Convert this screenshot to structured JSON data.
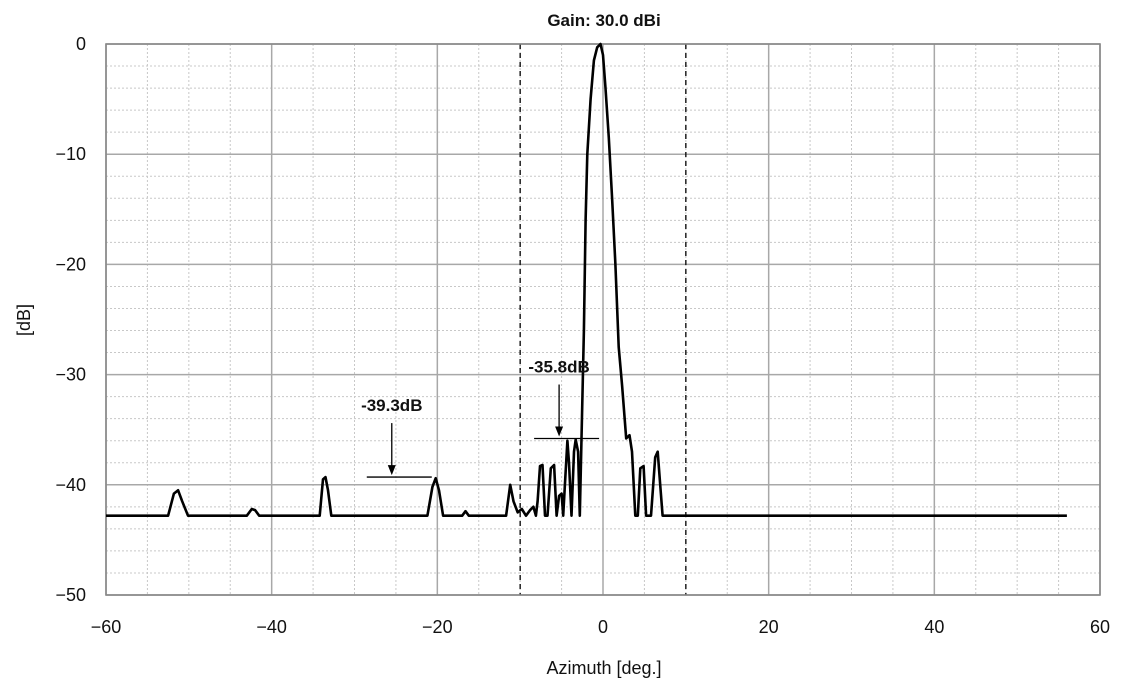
{
  "chart_data": {
    "type": "line",
    "title": "Gain: 30.0 dBi",
    "xlabel": "Azimuth [deg.]",
    "ylabel": "[dB]",
    "xlim": [
      -60,
      60
    ],
    "ylim": [
      -50,
      0
    ],
    "x_ticks": [
      "-60",
      "-40",
      "-20",
      "0",
      "20",
      "40",
      "60"
    ],
    "y_ticks": [
      "0",
      "-10",
      "-20",
      "-30",
      "-40",
      "-50"
    ],
    "grid": true,
    "legend": "none",
    "reference_lines": [
      {
        "x": -10,
        "style": "dashed"
      },
      {
        "x": 10,
        "style": "dashed"
      }
    ],
    "annotations": [
      {
        "text": "-39.3dB",
        "x": -25.5,
        "level": -39.3
      },
      {
        "text": "-35.8dB",
        "x": -5.3,
        "level": -35.8
      }
    ],
    "series": [
      {
        "x": [
          -60,
          -52.5,
          -51.8,
          -51.3,
          -50.8,
          -50.1,
          -43,
          -42.4,
          -42,
          -41.5,
          -34.2,
          -33.8,
          -33.5,
          -33.2,
          -32.8,
          -21.2,
          -20.6,
          -20.2,
          -19.8,
          -19.3,
          -17,
          -16.6,
          -16.2,
          -11.7,
          -11.2,
          -10.8,
          -10.3,
          -9.8,
          -9.3,
          -8.8,
          -8.4,
          -8.1,
          -7.9,
          -7.6,
          -7.3,
          -7.0,
          -6.7,
          -6.3,
          -5.9,
          -5.6,
          -5.3,
          -5.0,
          -4.8,
          -4.6,
          -4.3,
          -4.1,
          -3.8,
          -3.5,
          -3.3,
          -3.0,
          -2.8,
          -2.6,
          -2.3,
          -2.1,
          -1.9,
          -1.5,
          -1.1,
          -0.7,
          -0.3,
          0,
          0.3,
          0.7,
          1.1,
          1.5,
          1.9,
          2.3,
          2.8,
          3.2,
          3.5,
          3.9,
          4.2,
          4.5,
          4.9,
          5.2,
          5.5,
          5.8,
          6.3,
          6.6,
          6.9,
          7.2,
          7.5,
          7.8,
          8.2,
          56
        ],
        "y": [
          -42.8,
          -42.8,
          -40.8,
          -40.5,
          -41.5,
          -42.8,
          -42.8,
          -42.2,
          -42.3,
          -42.8,
          -42.8,
          -39.5,
          -39.3,
          -40.5,
          -42.8,
          -42.8,
          -40.2,
          -39.4,
          -40.5,
          -42.8,
          -42.8,
          -42.4,
          -42.8,
          -42.8,
          -40.0,
          -41.5,
          -42.5,
          -42.2,
          -42.8,
          -42.3,
          -42.0,
          -42.8,
          -41.5,
          -38.3,
          -38.2,
          -42.8,
          -42.8,
          -38.5,
          -38.2,
          -42.8,
          -41.0,
          -40.8,
          -42.8,
          -40.0,
          -36.0,
          -38.0,
          -42.8,
          -37.0,
          -35.9,
          -37.0,
          -42.8,
          -35.8,
          -26.0,
          -16.0,
          -10.0,
          -5.0,
          -1.5,
          -0.3,
          0.0,
          -1.0,
          -4.0,
          -8.5,
          -14.0,
          -20.0,
          -27.5,
          -31.0,
          -35.8,
          -35.5,
          -37.0,
          -42.8,
          -42.8,
          -38.5,
          -38.3,
          -42.8,
          -42.8,
          -42.8,
          -37.5,
          -37.0,
          -40.0,
          -42.8,
          -42.8,
          -42.8,
          -42.8,
          -42.8
        ]
      }
    ]
  }
}
